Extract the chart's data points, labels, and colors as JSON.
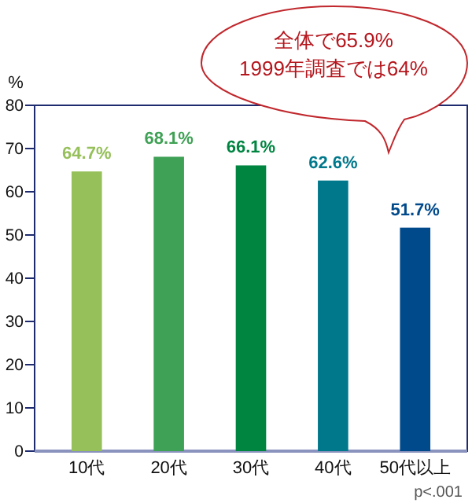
{
  "chart_data": {
    "type": "bar",
    "ylabel": "%",
    "categories": [
      "10代",
      "20代",
      "30代",
      "40代",
      "50代以上"
    ],
    "values": [
      64.7,
      68.1,
      66.1,
      62.6,
      51.7
    ],
    "colors": [
      "#96c05a",
      "#3fa155",
      "#008541",
      "#00788c",
      "#004a8c"
    ],
    "value_labels": [
      "64.7%",
      "68.1%",
      "66.1%",
      "62.6%",
      "51.7%"
    ],
    "ylim": [
      0,
      80
    ],
    "yticks": [
      0,
      10,
      20,
      30,
      40,
      50,
      60,
      70,
      80
    ],
    "grid": false,
    "annotations": [
      "全体で65.9%\n1999年調査では64%",
      "p<.001"
    ]
  }
}
